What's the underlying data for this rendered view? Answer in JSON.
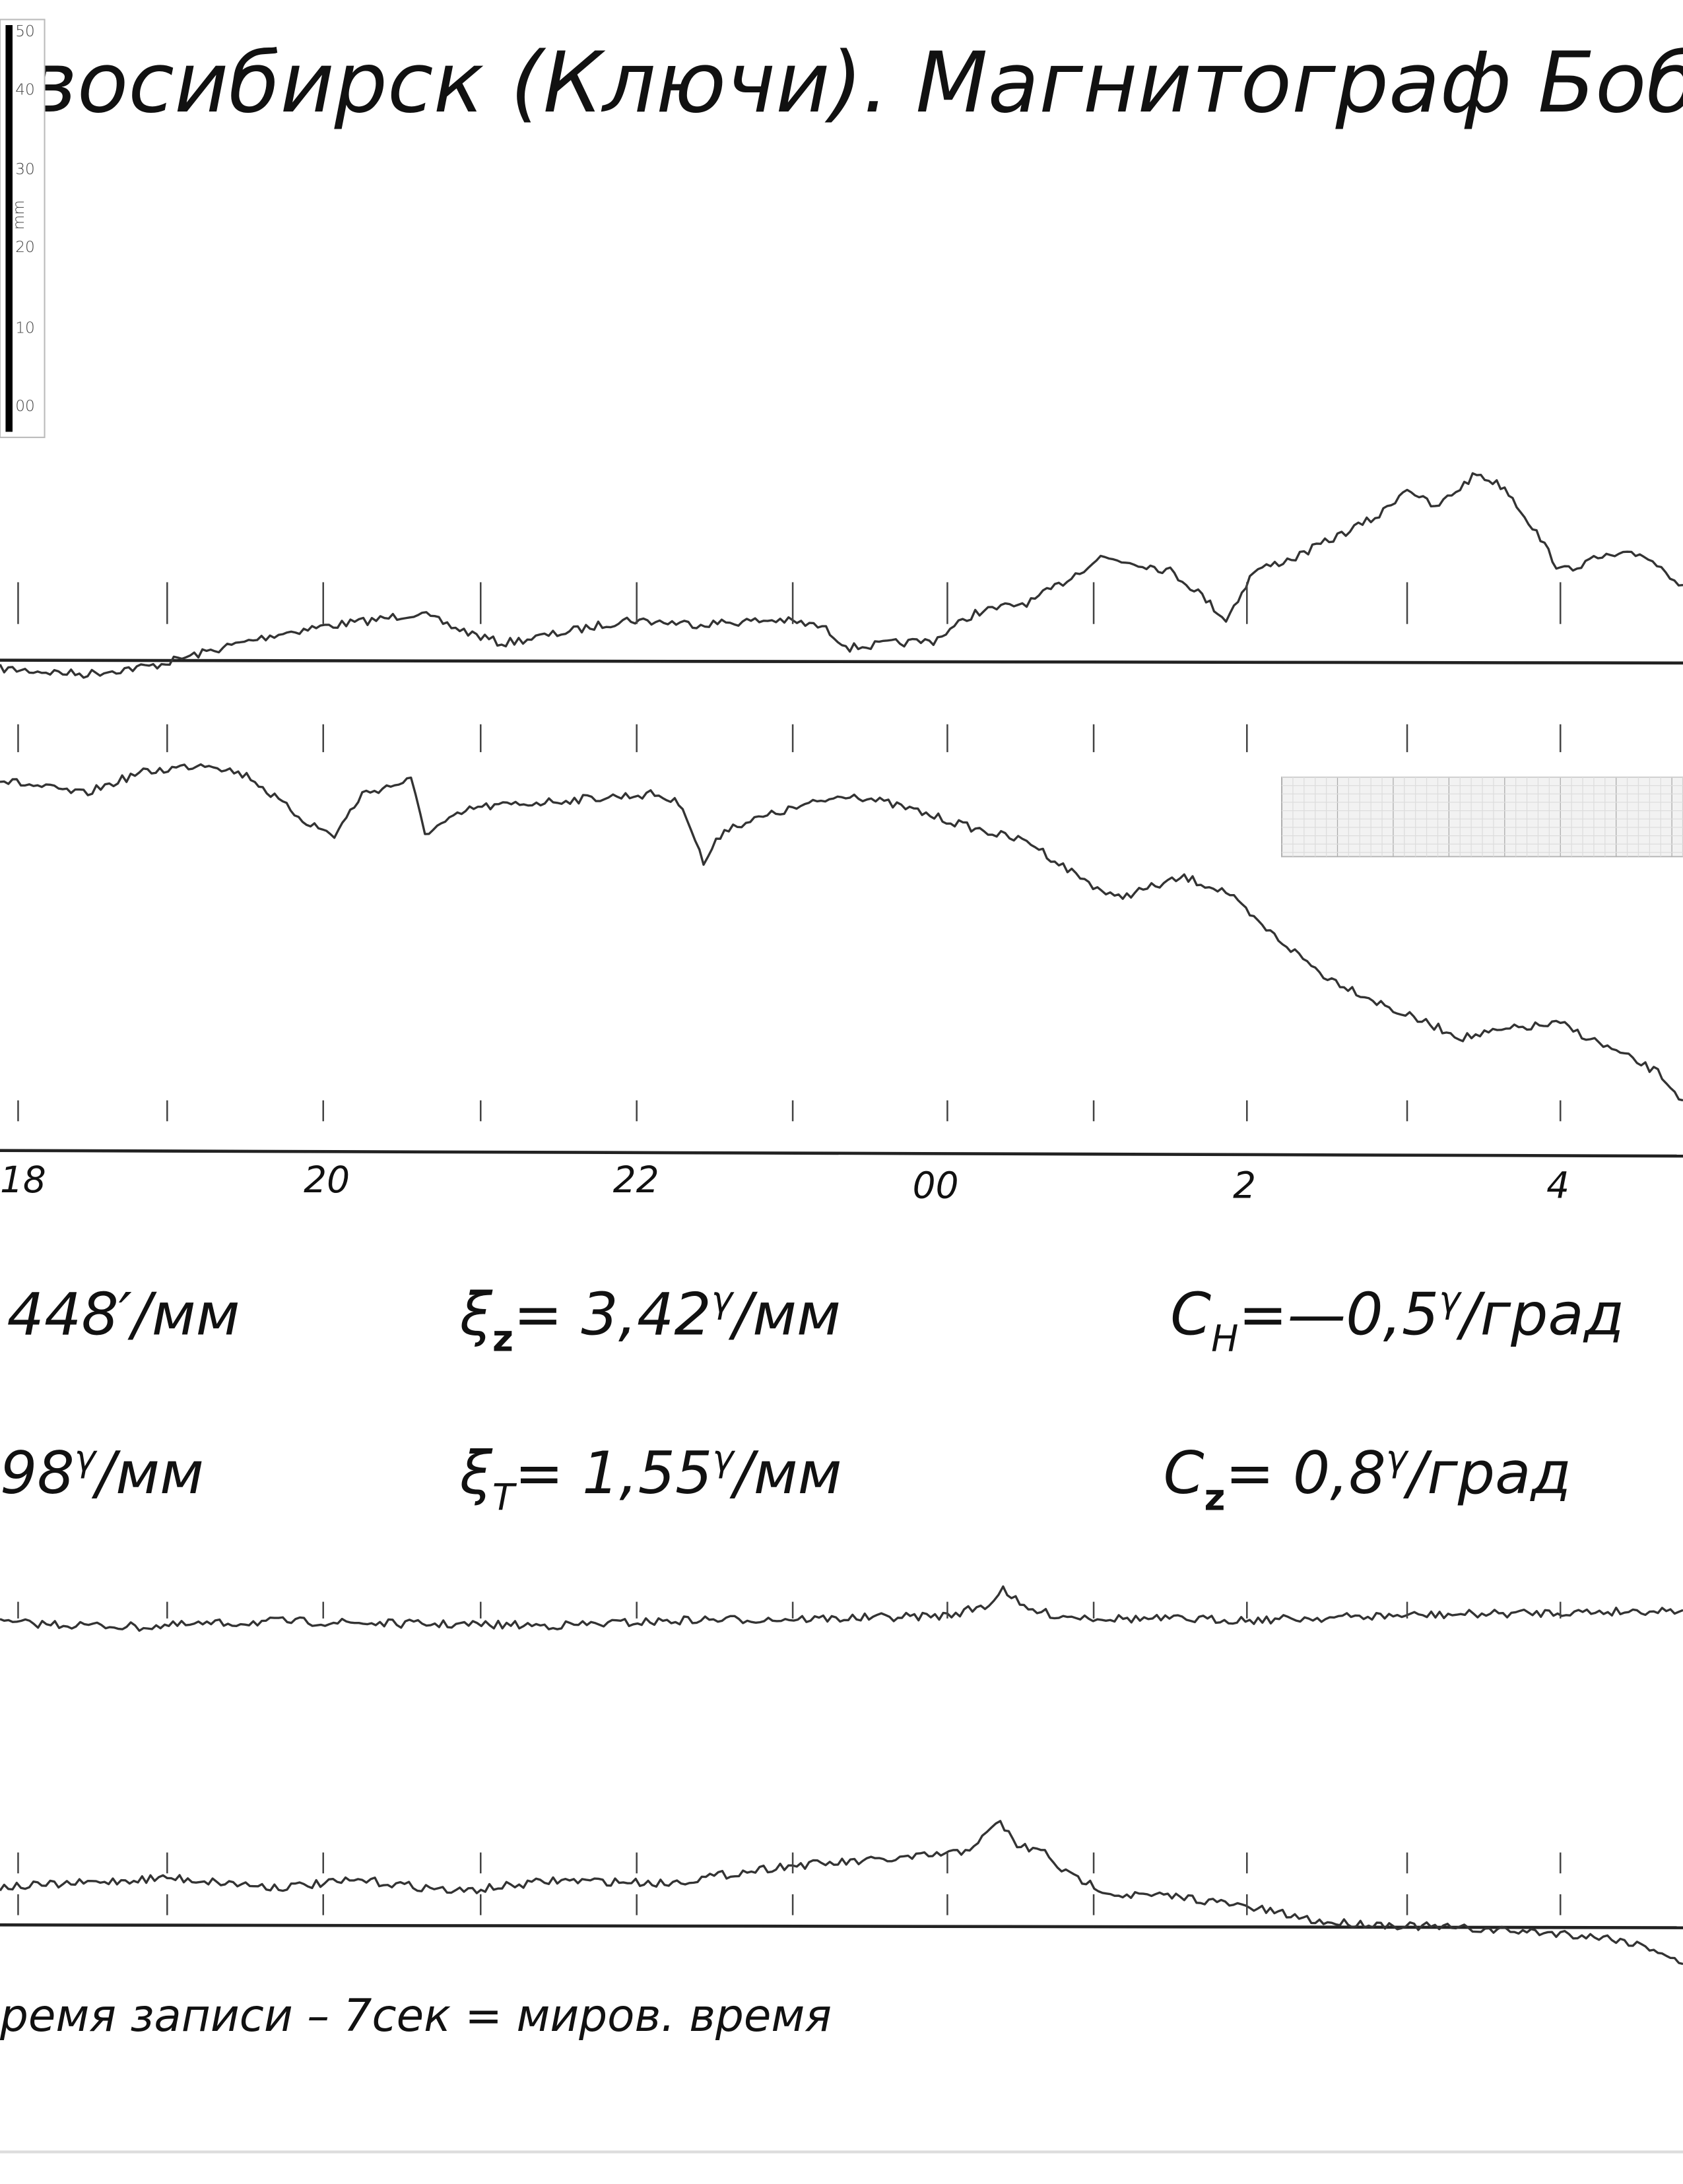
{
  "title": "восибирск (Ключи). Магнитограф Боброе",
  "scale": {
    "unit": "mm",
    "labels": [
      "50",
      "40",
      "30",
      "20",
      "10",
      "00"
    ]
  },
  "time_axis": {
    "labels": [
      "18",
      "20",
      "22",
      "00",
      "2",
      "4"
    ]
  },
  "constants": {
    "row1": [
      {
        "value": "448′/мм"
      },
      {
        "symbol": "ξ",
        "subscript": "z",
        "value": "= 3,42",
        "unit_sup": "γ",
        "unit": "/мм"
      },
      {
        "symbol": "C",
        "subscript": "H",
        "value": "=—0,5",
        "unit_sup": "γ",
        "unit": "/град"
      }
    ],
    "row2": [
      {
        "value": "98",
        "unit_sup": "γ",
        "unit": "/мм"
      },
      {
        "symbol": "ξ",
        "subscript": "T",
        "value": "= 1,55",
        "unit_sup": "γ",
        "unit": "/мм"
      },
      {
        "symbol": "C",
        "subscript": "z",
        "value": "= 0,8",
        "unit_sup": "γ",
        "unit": "/град"
      }
    ]
  },
  "footer": "ремя записи – 7сек = миров. время"
}
